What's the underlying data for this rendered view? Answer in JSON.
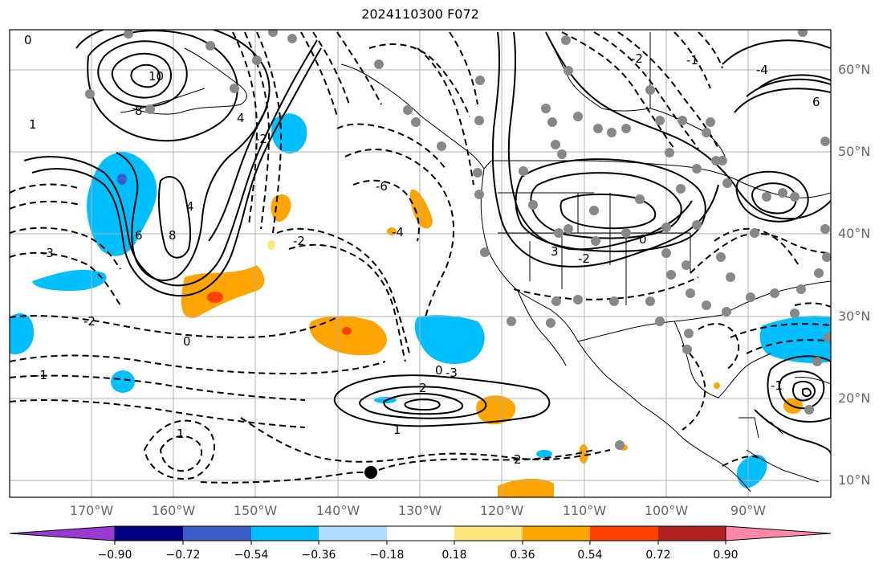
{
  "title": "2024110300 F072",
  "map": {
    "lat_labels": [
      "60°N",
      "50°N",
      "40°N",
      "30°N",
      "20°N",
      "10°N"
    ],
    "lon_labels": [
      "170°W",
      "160°W",
      "150°W",
      "140°W",
      "130°W",
      "120°W",
      "110°W",
      "100°W",
      "90°W"
    ],
    "contour_labels": [
      "0",
      "10",
      "8",
      "1",
      "4",
      "-2",
      "8",
      "-6",
      "-4",
      "4",
      "-3",
      "6",
      "0",
      "-2",
      "-1",
      "-2",
      "2",
      "0",
      "1",
      "3",
      "-2",
      "-2",
      "0",
      "6",
      "2",
      "-1",
      "-3",
      "-4",
      "1",
      "-1"
    ],
    "feature_colors": {
      "coast": "#000000",
      "grid": "#b0b0b0",
      "marker": "#888888",
      "track": "#000000"
    }
  },
  "colorbar": {
    "ticks": [
      "−0.90",
      "−0.72",
      "−0.54",
      "−0.36",
      "−0.18",
      "0.18",
      "0.36",
      "0.54",
      "0.72",
      "0.90"
    ],
    "colors": [
      "#9b3ad1",
      "#000080",
      "#3a5cc8",
      "#00bfff",
      "#b0e0ff",
      "#ffffff",
      "#ffe680",
      "#ffa500",
      "#ff4000",
      "#b22222",
      "#ff88aa"
    ]
  }
}
